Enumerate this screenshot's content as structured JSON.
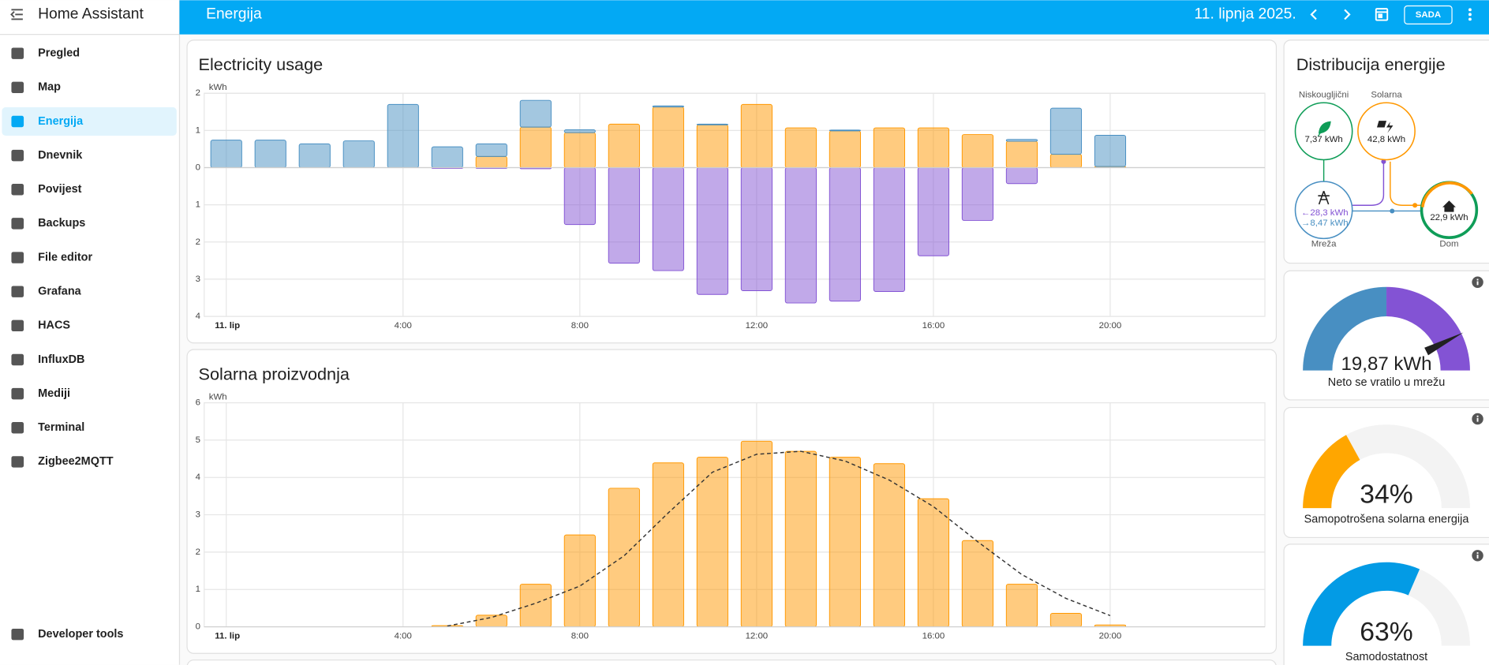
{
  "app_title": "Home Assistant",
  "sidebar": {
    "items": [
      "Pregled",
      "Map",
      "Energija",
      "Dnevnik",
      "Povijest",
      "Backups",
      "File editor",
      "Grafana",
      "HACS",
      "InfluxDB",
      "Mediji",
      "Terminal",
      "Zigbee2MQTT"
    ],
    "selected": 2,
    "bottom": [
      "Developer tools"
    ]
  },
  "topbar": {
    "title": "Energija",
    "date": "11. lipnja 2025.",
    "button": "SADA"
  },
  "chart_data": [
    {
      "type": "bar",
      "title": "Electricity usage",
      "y_unit": "kWh",
      "categories": [
        "11. lip",
        null,
        null,
        null,
        "4:00",
        null,
        null,
        null,
        "8:00",
        null,
        null,
        null,
        "12:00",
        null,
        null,
        null,
        "16:00",
        null,
        null,
        null,
        "20:00",
        null,
        null,
        null
      ],
      "ylim": [
        -4,
        2
      ],
      "yticks": [
        {
          "value": -4,
          "label": "4"
        },
        {
          "value": -3,
          "label": "3"
        },
        {
          "value": -2,
          "label": "2"
        },
        {
          "value": -1,
          "label": "1"
        },
        0,
        1,
        2
      ],
      "grid": true,
      "series": [
        {
          "color": "#ff9800",
          "values": [
            0,
            0,
            0,
            0,
            0,
            0,
            0.3,
            1.09,
            0.94,
            1.17,
            1.63,
            1.15,
            1.7,
            1.07,
            0.99,
            1.07,
            1.07,
            0.89,
            0.71,
            0.36,
            0.03,
            null,
            null,
            null
          ]
        },
        {
          "color": "#488fc2",
          "values": [
            0.74,
            0.74,
            0.64,
            0.72,
            1.7,
            0.56,
            0.34,
            0.72,
            0.08,
            0,
            0.03,
            0.02,
            0,
            0,
            0.02,
            0,
            0,
            0,
            0.05,
            1.24,
            0.84,
            null,
            null,
            null
          ]
        },
        {
          "color": "#8353d4",
          "values": [
            0,
            0,
            0,
            0,
            0,
            -0.02,
            -0.02,
            -0.03,
            -1.53,
            -2.57,
            -2.77,
            -3.41,
            -3.31,
            -3.64,
            -3.59,
            -3.33,
            -2.37,
            -1.42,
            -0.43,
            0,
            0,
            null,
            null,
            null
          ]
        }
      ]
    },
    {
      "type": "bar",
      "title": "Solarna proizvodnja",
      "y_unit": "kWh",
      "categories": [
        "11. lip",
        null,
        null,
        null,
        "4:00",
        null,
        null,
        null,
        "8:00",
        null,
        null,
        null,
        "12:00",
        null,
        null,
        null,
        "16:00",
        null,
        null,
        null,
        "20:00",
        null,
        null,
        null
      ],
      "ylim": [
        0,
        6
      ],
      "yticks": [
        0,
        1,
        2,
        3,
        4,
        5,
        6
      ],
      "grid": true,
      "series": [
        {
          "color": "#ff9800",
          "values": [
            0,
            0,
            0,
            0,
            0,
            0.03,
            0.31,
            1.14,
            2.46,
            3.71,
            4.39,
            4.54,
            4.97,
            4.7,
            4.54,
            4.37,
            3.43,
            2.31,
            1.14,
            0.36,
            0.05,
            null,
            null,
            null
          ]
        },
        {
          "type": "line",
          "dashed": true,
          "color": "#333333",
          "values": [
            null,
            null,
            null,
            null,
            null,
            0.02,
            0.25,
            0.63,
            1.09,
            1.9,
            3.05,
            4.14,
            4.62,
            4.7,
            4.44,
            3.93,
            3.22,
            2.28,
            1.4,
            0.76,
            0.3,
            null,
            null,
            null
          ]
        }
      ]
    }
  ],
  "distribution": {
    "title": "Distribucija energije",
    "nodes": [
      {
        "label": "Niskougljični",
        "value": "7,37 kWh"
      },
      {
        "label": "Solarna",
        "value": "42,8 kWh"
      },
      {
        "label": "Mreža",
        "values": [
          "←28,3 kWh",
          "→8,47 kWh"
        ]
      },
      {
        "label": "Dom",
        "value": "22,9 kWh"
      }
    ]
  },
  "gauges": [
    {
      "label": "19,87 kWh",
      "caption": "Neto se vratilo u mrežu"
    },
    {
      "value": 34,
      "label": "34%",
      "caption": "Samopotrošena solarna energija",
      "color": "#ffa600"
    },
    {
      "value": 63,
      "label": "63%",
      "caption": "Samodostatnost",
      "color": "#039be5"
    }
  ]
}
